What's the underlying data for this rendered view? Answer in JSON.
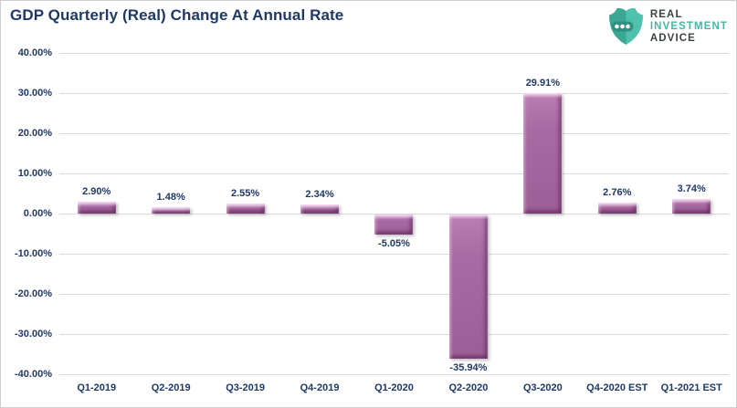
{
  "title": "GDP Quarterly (Real) Change At Annual Rate",
  "logo": {
    "line1": "REAL",
    "line2": "INVESTMENT",
    "line3": "ADVICE",
    "shield_left_color": "#3ba896",
    "shield_right_color": "#4fc2ad",
    "band_color": "#2f9081",
    "dot_color": "#ffffff",
    "text_dark_color": "#3c4440",
    "text_accent_color": "#45b8a5"
  },
  "colors": {
    "title_text": "#1f3864",
    "axis_text": "#1f3864",
    "data_label_text": "#1f3864",
    "gridline": "#d9d9d9",
    "bar_fill": "#a4659e",
    "bar_highlight": "#e0a0d4",
    "bar_dark_edge": "#7b4476",
    "background": "#ffffff",
    "frame_border": "#cfcfcf"
  },
  "chart_data": {
    "type": "bar",
    "title": "GDP Quarterly (Real) Change At Annual Rate",
    "categories": [
      "Q1-2019",
      "Q2-2019",
      "Q3-2019",
      "Q4-2019",
      "Q1-2020",
      "Q2-2020",
      "Q3-2020",
      "Q4-2020 EST",
      "Q1-2021 EST"
    ],
    "values": [
      2.9,
      1.48,
      2.55,
      2.34,
      -5.05,
      -35.94,
      29.91,
      2.76,
      3.74
    ],
    "value_labels": [
      "2.90%",
      "1.48%",
      "2.55%",
      "2.34%",
      "-5.05%",
      "-35.94%",
      "29.91%",
      "2.76%",
      "3.74%"
    ],
    "xlabel": "",
    "ylabel": "",
    "ylim": [
      -40,
      40
    ],
    "y_tick_step": 10,
    "y_tick_labels": [
      "40.00%",
      "30.00%",
      "20.00%",
      "10.00%",
      "0.00%",
      "-10.00%",
      "-20.00%",
      "-30.00%",
      "-40.00%"
    ],
    "grid": "horizontal",
    "legend": "none",
    "data_label_position": "outside-end"
  }
}
